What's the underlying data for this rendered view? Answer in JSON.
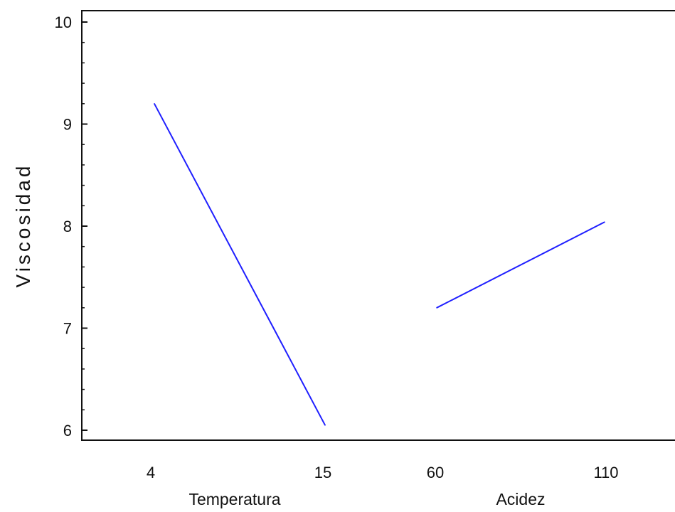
{
  "chart_data": {
    "type": "line",
    "ylabel": "Viscosidad",
    "ylim": [
      6,
      10
    ],
    "yticks": [
      "6",
      "7",
      "8",
      "9",
      "10"
    ],
    "line_color": "#1f1fff",
    "panels": [
      {
        "xlabel": "Temperatura",
        "x": [
          "4",
          "15"
        ],
        "y": [
          9.2,
          6.05
        ]
      },
      {
        "xlabel": "Acidez",
        "x": [
          "60",
          "110"
        ],
        "y": [
          7.2,
          8.04
        ]
      }
    ]
  }
}
